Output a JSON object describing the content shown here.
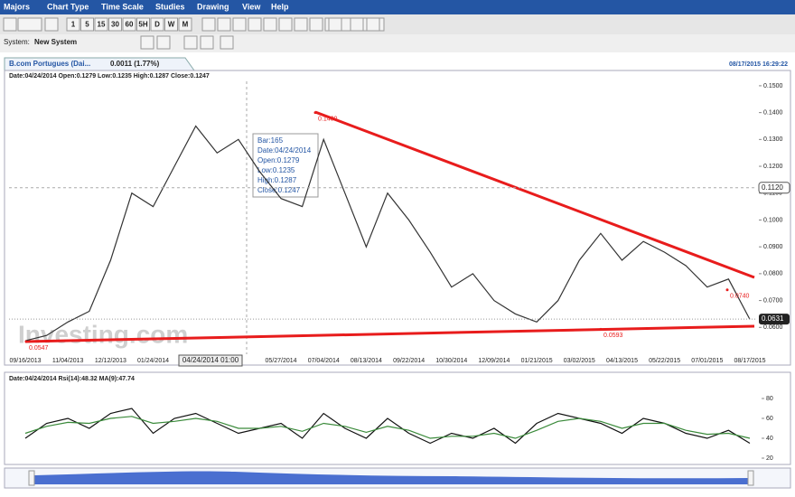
{
  "menu": [
    "Majors",
    "Chart Type",
    "Time Scale",
    "Studies",
    "Drawing",
    "View",
    "Help"
  ],
  "intervals": [
    "1",
    "5",
    "15",
    "30",
    "60",
    "5H",
    "D",
    "W",
    "M"
  ],
  "system": {
    "label": "System:",
    "name": "New System"
  },
  "tab": {
    "title": "B.com Portugues (Dai...",
    "change": "0.0011 (1.77%)",
    "timestamp": "08/17/2015 16:29:22"
  },
  "tooltip": [
    "Bar:165",
    "Date:04/24/2014",
    "Open:0.1279",
    "Low:0.1235",
    "High:0.1287",
    "Close:0.1247"
  ],
  "watermark": "Investing.com",
  "chart_data": [
    {
      "type": "line",
      "title": "Date:04/24/2014 Open:0.1279 Low:0.1235 High:0.1287 Close:0.1247",
      "categories": [
        "09/16/2013",
        null,
        "11/04/2013",
        null,
        "12/12/2013",
        null,
        "01/24/2014",
        null,
        null,
        null,
        null,
        null,
        "05/27/2014",
        null,
        "07/04/2014",
        null,
        "08/13/2014",
        null,
        "09/22/2014",
        null,
        "10/30/2014",
        null,
        "12/09/2014",
        null,
        "01/21/2015",
        null,
        "03/02/2015",
        null,
        "04/13/2015",
        null,
        "05/22/2015",
        null,
        "07/01/2015",
        null,
        "08/17/2015"
      ],
      "series": [
        {
          "color": "#333333",
          "values": [
            0.055,
            0.057,
            0.062,
            0.066,
            0.085,
            0.11,
            0.105,
            0.12,
            0.135,
            0.125,
            0.13,
            0.118,
            0.108,
            0.105,
            0.13,
            0.11,
            0.09,
            0.11,
            0.1,
            0.088,
            0.075,
            0.08,
            0.07,
            0.065,
            0.062,
            0.07,
            0.085,
            0.095,
            0.085,
            0.092,
            0.088,
            0.083,
            0.075,
            0.078,
            0.063
          ]
        }
      ],
      "ylim": [
        0.05,
        0.153
      ],
      "yticks": [
        {
          "value": 0.06,
          "label": "0.0600"
        },
        {
          "value": 0.07,
          "label": "0.0700"
        },
        {
          "value": 0.08,
          "label": "0.0800"
        },
        {
          "value": 0.09,
          "label": "0.0900"
        },
        {
          "value": 0.1,
          "label": "0.1000"
        },
        {
          "value": 0.11,
          "label": "0.1100"
        },
        {
          "value": 0.12,
          "label": "0.1200"
        },
        {
          "value": 0.13,
          "label": "0.1300"
        },
        {
          "value": 0.14,
          "label": "0.1400"
        },
        {
          "value": 0.15,
          "label": "0.1500"
        }
      ],
      "grid": false,
      "annotations": [
        {
          "value": 0.14,
          "label": "0.1400"
        },
        {
          "value": 0.0547,
          "label": "0.0547"
        },
        {
          "value": 0.0593,
          "label": "0.0593"
        },
        {
          "value": 0.074,
          "label": "0.0740"
        }
      ],
      "crosshair": {
        "x_label": "04/24/2014 01:00",
        "y": {
          "value": 0.112,
          "label": "0.1120"
        }
      },
      "last_price": {
        "value": 0.0631,
        "label": "0.0631"
      }
    },
    {
      "type": "line",
      "title": "Date:04/24/2014 Rsi(14):48.32 MA(9):47.74",
      "series": [
        {
          "color": "#111111",
          "values": [
            40,
            55,
            60,
            50,
            65,
            70,
            45,
            60,
            65,
            55,
            45,
            50,
            55,
            40,
            65,
            50,
            40,
            60,
            45,
            35,
            45,
            40,
            50,
            35,
            55,
            65,
            60,
            55,
            45,
            60,
            55,
            45,
            40,
            48,
            35
          ]
        },
        {
          "color": "#3a8a3a",
          "values": [
            45,
            52,
            56,
            55,
            60,
            62,
            55,
            57,
            60,
            57,
            50,
            50,
            52,
            47,
            55,
            52,
            46,
            52,
            48,
            40,
            42,
            42,
            45,
            40,
            48,
            57,
            60,
            57,
            50,
            55,
            55,
            48,
            44,
            45,
            40
          ]
        }
      ],
      "ylim": [
        15,
        95
      ],
      "yticks": [
        20,
        40,
        60,
        80
      ],
      "grid": false
    }
  ]
}
